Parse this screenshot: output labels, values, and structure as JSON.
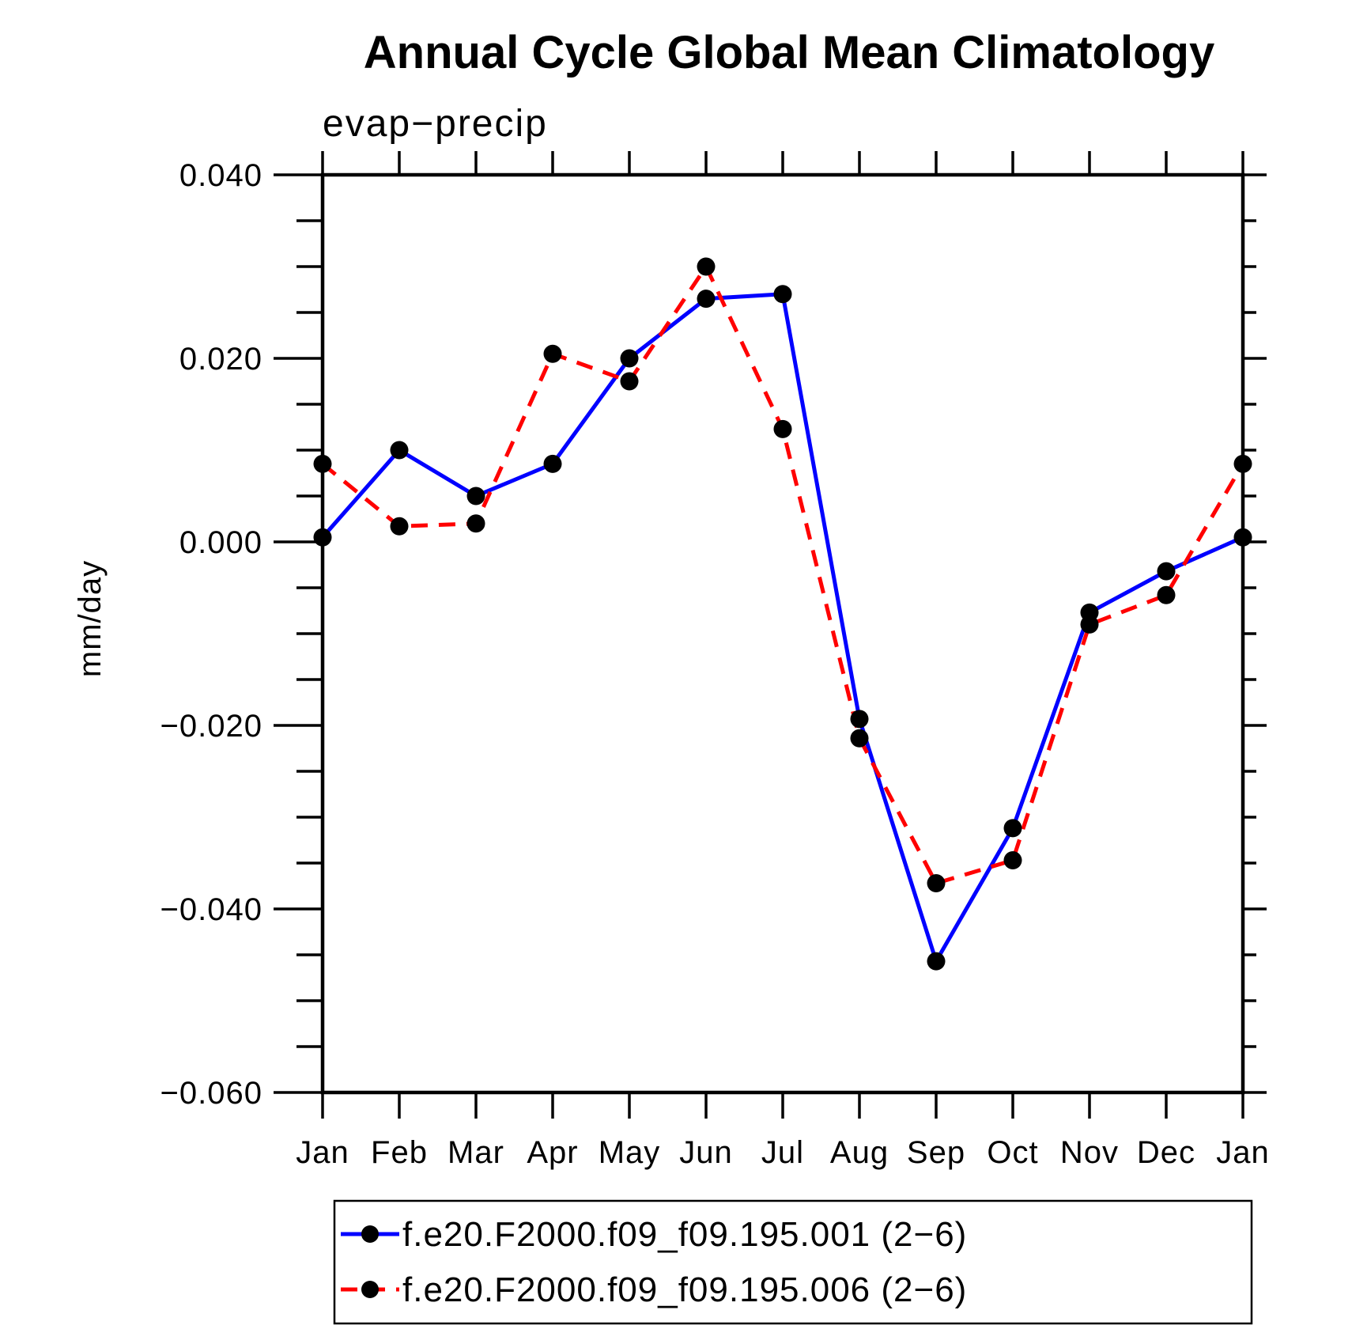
{
  "title": "Annual Cycle Global Mean Climatology",
  "chart_data": {
    "type": "line",
    "title": "Annual Cycle Global Mean Climatology",
    "subtitle": "evap−precip",
    "ylabel": "mm/day",
    "xlabel": "",
    "categories": [
      "Jan",
      "Feb",
      "Mar",
      "Apr",
      "May",
      "Jun",
      "Jul",
      "Aug",
      "Sep",
      "Oct",
      "Nov",
      "Dec",
      "Jan"
    ],
    "ylim": [
      -0.06,
      0.04
    ],
    "ytick_values": [
      0.04,
      0.02,
      0.0,
      -0.02,
      -0.04,
      -0.06
    ],
    "ytick_labels": [
      "0.040",
      "0.020",
      "0.000",
      "−0.020",
      "−0.040",
      "−0.060"
    ],
    "minor_tick_step": 0.005,
    "grid": false,
    "legend_position": "bottom",
    "series": [
      {
        "name": "f.e20.F2000.f09_f09.195.001 (2−6)",
        "color": "#0000ff",
        "line_style": "solid",
        "marker": "circle",
        "marker_color": "#000000",
        "values": [
          0.0005,
          0.01,
          0.005,
          0.0085,
          0.02,
          0.0265,
          0.027,
          -0.0193,
          -0.0457,
          -0.0312,
          -0.0077,
          -0.0032,
          0.0005
        ]
      },
      {
        "name": "f.e20.F2000.f09_f09.195.006 (2−6)",
        "color": "#ff0000",
        "line_style": "dashed",
        "marker": "circle",
        "marker_color": "#000000",
        "values": [
          0.0085,
          0.0017,
          0.002,
          0.0205,
          0.0175,
          0.03,
          0.0123,
          -0.0214,
          -0.0372,
          -0.0347,
          -0.009,
          -0.0058,
          0.0085
        ]
      }
    ]
  },
  "legend": {
    "entries": [
      {
        "label": "f.e20.F2000.f09_f09.195.001 (2−6)",
        "color": "#0000ff",
        "style": "solid"
      },
      {
        "label": "f.e20.F2000.f09_f09.195.006 (2−6)",
        "color": "#ff0000",
        "style": "dashed"
      }
    ]
  }
}
